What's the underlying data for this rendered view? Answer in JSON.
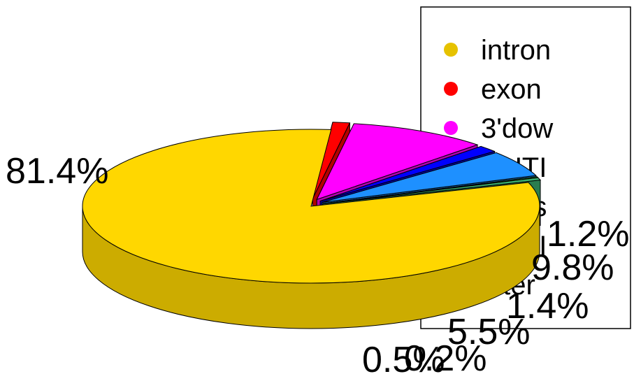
{
  "chart_data": {
    "type": "pie",
    "style": "3d-exploded",
    "categories": [
      "intron",
      "exon",
      "3'down",
      "3'UTR",
      "5'ups",
      "5'UTR",
      "intergenic"
    ],
    "legend_labels": [
      "intron",
      "exon",
      "3'dow",
      "3'UTI",
      "5'ups",
      "5'UTI",
      "inter"
    ],
    "values": [
      81.4,
      1.2,
      9.8,
      1.4,
      5.5,
      0.2,
      0.5
    ],
    "value_labels": [
      "81.4%",
      "1.2%",
      "9.8%",
      "1.4%",
      "5.5%",
      "0.2%",
      "0.5%"
    ],
    "colors": [
      "#FFD700",
      "#FF0000",
      "#FF00FF",
      "#0000FF",
      "#1E90FF",
      "#32CD32",
      "#3CB371"
    ],
    "legend_dot_colors": [
      "#E6C200",
      "#FF0000",
      "#FF00FF",
      "#0000FF",
      "#6495ED",
      "#3CB371",
      "#3CB371"
    ],
    "legend_position": "right"
  }
}
